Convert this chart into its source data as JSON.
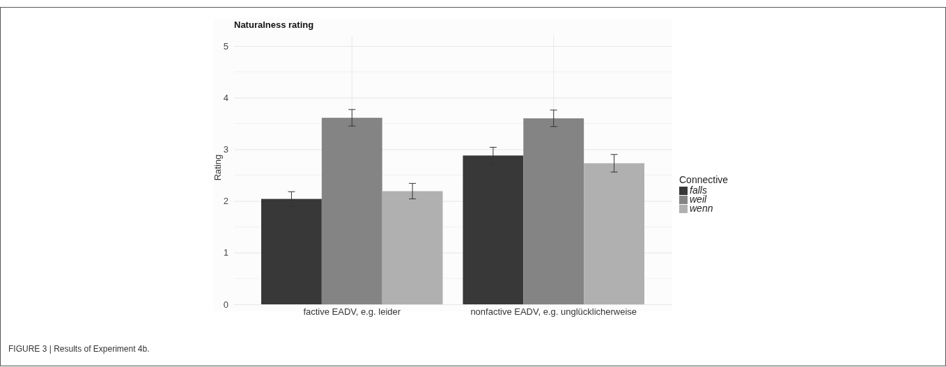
{
  "chart_data": {
    "type": "bar",
    "title": "Naturalness rating",
    "ylabel": "Rating",
    "legend_title": "Connective",
    "categories": [
      "factive EADV, e.g. leider",
      "nonfactive EADV, e.g. unglücklicherweise"
    ],
    "series": [
      {
        "name": "falls",
        "color": "#383838",
        "values": [
          2.04,
          2.88
        ],
        "errors": [
          0.14,
          0.16
        ]
      },
      {
        "name": "weil",
        "color": "#848484",
        "values": [
          3.61,
          3.6
        ],
        "errors": [
          0.16,
          0.16
        ]
      },
      {
        "name": "wenn",
        "color": "#b0b0b0",
        "values": [
          2.19,
          2.73
        ],
        "errors": [
          0.15,
          0.17
        ]
      }
    ],
    "ylim": [
      0,
      5.2
    ],
    "yticks": [
      0,
      1,
      2,
      3,
      4,
      5
    ],
    "grid": true,
    "legend": "right",
    "annotations": [
      "FIGURE 3 | Results of Experiment 4b."
    ]
  }
}
